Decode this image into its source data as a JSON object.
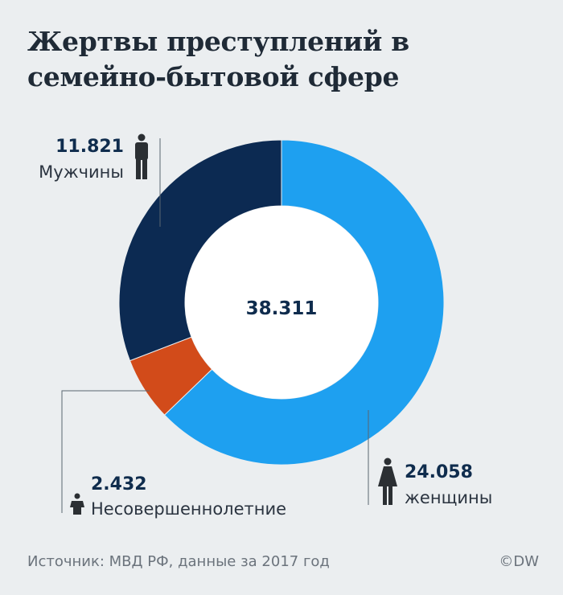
{
  "title_lines": [
    "Жертвы преступлений в",
    "семейно-бытовой сфере"
  ],
  "source": "Источник: МВД РФ, данные за 2017 год",
  "brand": "©DW",
  "chart_data": {
    "type": "pie",
    "variant": "donut",
    "center_label": "38.311",
    "total": 38311,
    "slices": [
      {
        "key": "women",
        "name": "женщины",
        "label": "24.058",
        "value": 24058,
        "color": "#1ea0f0",
        "icon": "woman-icon"
      },
      {
        "key": "minors",
        "name": "Несовершеннолетние",
        "label": "2.432",
        "value": 2432,
        "color": "#d24b1a",
        "icon": "child-icon"
      },
      {
        "key": "men",
        "name": "Мужчины",
        "label": "11.821",
        "value": 11821,
        "color": "#0c2a52",
        "icon": "man-icon"
      }
    ]
  }
}
